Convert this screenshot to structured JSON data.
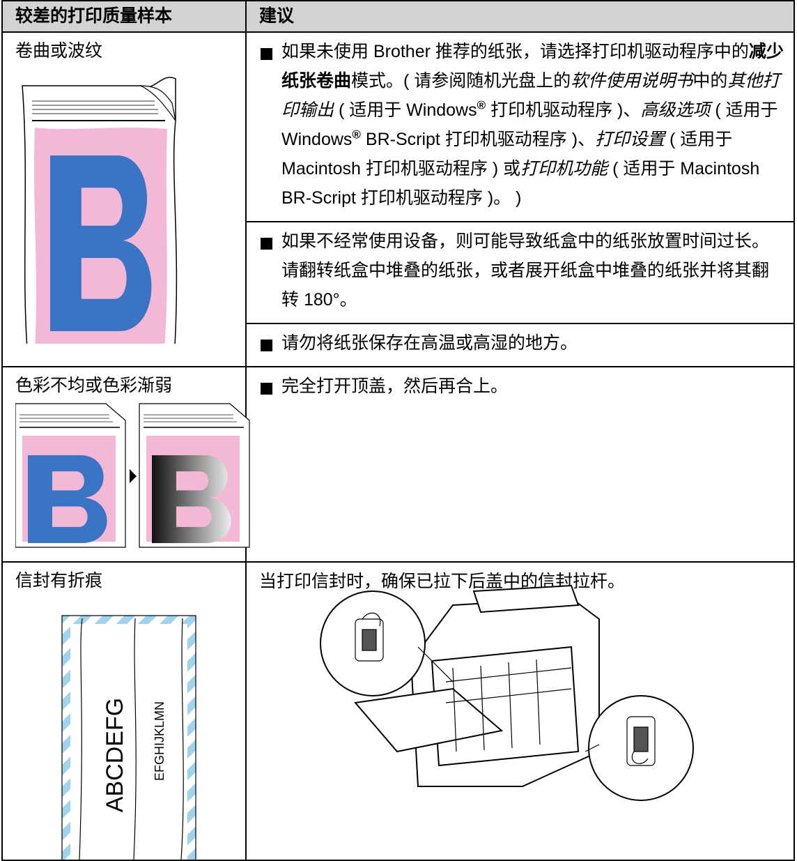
{
  "header": {
    "columns": [
      "较差的打印质量样本",
      "建议"
    ]
  },
  "rows": [
    {
      "sample": "卷曲或波纹",
      "suggestions": [
        {
          "bullet": true,
          "runs": [
            {
              "text": "如果未使用 Brother 推荐的纸张，请选择打印机驱动程序中的",
              "style": "normal"
            },
            {
              "text": "减少纸张卷曲",
              "style": "bold"
            },
            {
              "text": "模式。( 请参阅随机光盘上的",
              "style": "normal"
            },
            {
              "text": "软件使用说明书",
              "style": "italic"
            },
            {
              "text": "中的",
              "style": "normal"
            },
            {
              "text": "其他打印输出",
              "style": "italic"
            },
            {
              "text": " ( 适用于 Windows",
              "style": "normal"
            },
            {
              "text": "®",
              "style": "sup"
            },
            {
              "text": " 打印机驱动程序 )、",
              "style": "normal"
            },
            {
              "text": "高级选项",
              "style": "italic"
            },
            {
              "text": " ( 适用于 Windows",
              "style": "normal"
            },
            {
              "text": "®",
              "style": "sup"
            },
            {
              "text": " BR-Script 打印机驱动程序 )、",
              "style": "normal"
            },
            {
              "text": "打印设置",
              "style": "italic"
            },
            {
              "text": " ( 适用于 Macintosh 打印机驱动程序 ) 或",
              "style": "normal"
            },
            {
              "text": "打印机功能",
              "style": "italic"
            },
            {
              "text": " ( 适用于 Macintosh BR-Script 打印机驱动程序 )。 )",
              "style": "normal"
            }
          ]
        },
        {
          "bullet": true,
          "runs": [
            {
              "text": "如果不经常使用设备，则可能导致纸盒中的纸张放置时间过长。请翻转纸盒中堆叠的纸张，或者展开纸盒中堆叠的纸张并将其翻转 180°。",
              "style": "normal"
            }
          ]
        },
        {
          "bullet": true,
          "runs": [
            {
              "text": "请勿将纸张保存在高温或高湿的地方。",
              "style": "normal"
            }
          ]
        }
      ]
    },
    {
      "sample": "色彩不均或色彩渐弱",
      "suggestions": [
        {
          "bullet": true,
          "runs": [
            {
              "text": "完全打开顶盖，然后再合上。",
              "style": "normal"
            }
          ]
        }
      ]
    },
    {
      "sample": "信封有折痕",
      "illustration_text": [
        "ABCDEFG",
        "EFGHIJKLMN"
      ],
      "suggestions": [
        {
          "bullet": false,
          "runs": [
            {
              "text": "当打印信封时，确保已拉下后盖中的信封拉杆。",
              "style": "normal"
            }
          ]
        }
      ]
    }
  ]
}
